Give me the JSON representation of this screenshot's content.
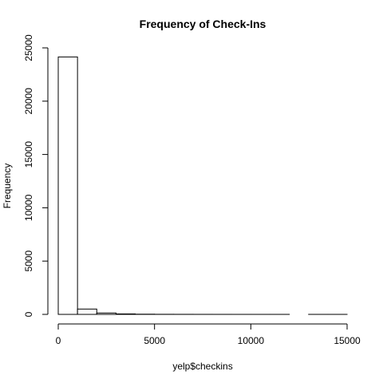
{
  "chart_data": {
    "type": "bar",
    "title": "Frequency of Check-Ins",
    "xlabel": "yelp$checkins",
    "ylabel": "Frequency",
    "bin_width": 1000,
    "bins": [
      {
        "x0": 0,
        "x1": 1000,
        "count": 24150
      },
      {
        "x0": 1000,
        "x1": 2000,
        "count": 500
      },
      {
        "x0": 2000,
        "x1": 3000,
        "count": 130
      },
      {
        "x0": 3000,
        "x1": 4000,
        "count": 45
      },
      {
        "x0": 4000,
        "x1": 5000,
        "count": 18
      },
      {
        "x0": 5000,
        "x1": 6000,
        "count": 8
      },
      {
        "x0": 6000,
        "x1": 7000,
        "count": 5
      },
      {
        "x0": 7000,
        "x1": 8000,
        "count": 3
      },
      {
        "x0": 8000,
        "x1": 9000,
        "count": 2
      },
      {
        "x0": 9000,
        "x1": 10000,
        "count": 1
      },
      {
        "x0": 10000,
        "x1": 11000,
        "count": 1
      },
      {
        "x0": 11000,
        "x1": 12000,
        "count": 1
      },
      {
        "x0": 12000,
        "x1": 13000,
        "count": 0
      },
      {
        "x0": 13000,
        "x1": 14000,
        "count": 1
      },
      {
        "x0": 14000,
        "x1": 15000,
        "count": 1
      }
    ],
    "xlim": [
      0,
      15000
    ],
    "ylim": [
      0,
      25000
    ],
    "x_ticks": [
      0,
      5000,
      10000,
      15000
    ],
    "x_tick_labels": [
      "0",
      "5000",
      "10000",
      "15000"
    ],
    "y_ticks": [
      0,
      5000,
      10000,
      15000,
      20000,
      25000
    ],
    "y_tick_labels": [
      "0",
      "5000",
      "10000",
      "15000",
      "20000",
      "25000"
    ],
    "grid": false,
    "bar_fill": "#ffffff",
    "bar_stroke": "#000000"
  }
}
